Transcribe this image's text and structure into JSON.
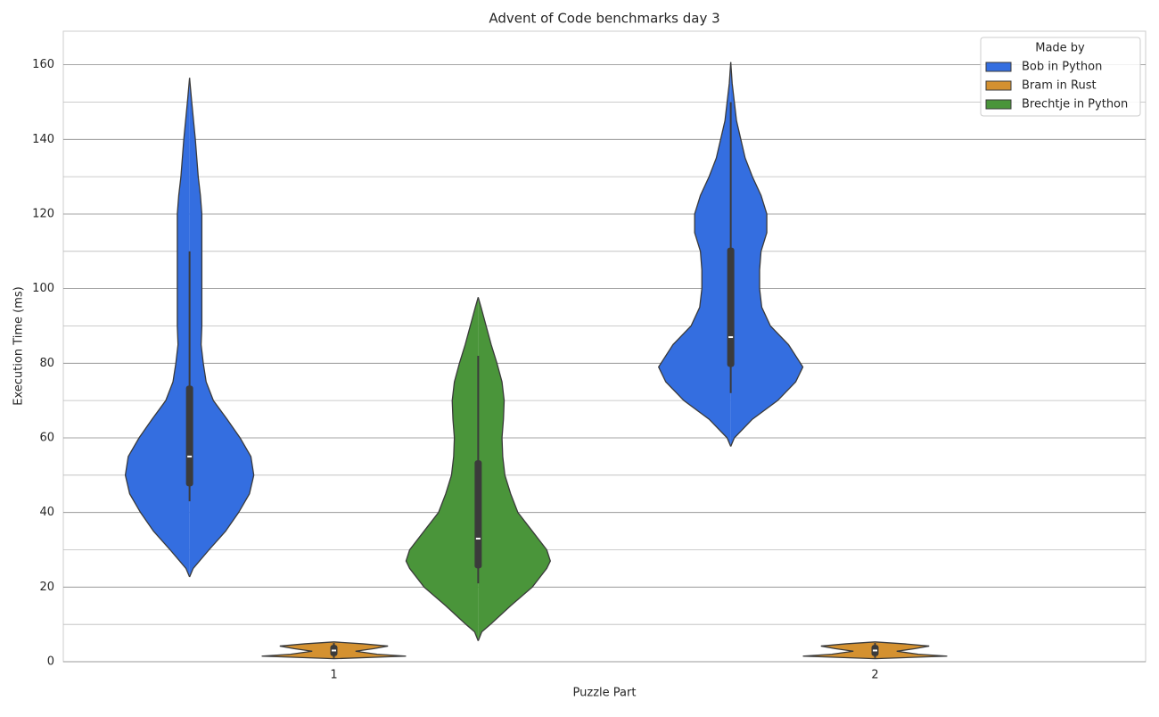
{
  "chart_data": {
    "type": "violin",
    "title": "Advent of Code benchmarks day 3",
    "xlabel": "Puzzle Part",
    "ylabel": "Execution Time (ms)",
    "categories": [
      "1",
      "2"
    ],
    "ylim": [
      0,
      169
    ],
    "yticks": [
      0,
      20,
      40,
      60,
      80,
      100,
      120,
      140,
      160
    ],
    "minor_yticks": [
      10,
      30,
      50,
      70,
      90,
      110,
      130,
      150
    ],
    "grid": true,
    "legend_title": "Made by",
    "legend_loc": "upper right",
    "series": [
      {
        "name": "Bob in Python",
        "color": "#346ee0",
        "values": [
          {
            "y": [
              22.7,
              25,
              30,
              35,
              40,
              45,
              50,
              55,
              60,
              65,
              70,
              75,
              80,
              85,
              90,
              100,
              110,
              120,
              125,
              130,
              140,
              150,
              156.5
            ],
            "density": [
              0,
              0.05,
              0.27,
              0.5,
              0.68,
              0.83,
              0.89,
              0.85,
              0.7,
              0.52,
              0.33,
              0.23,
              0.19,
              0.16,
              0.17,
              0.17,
              0.17,
              0.17,
              0.15,
              0.12,
              0.08,
              0.03,
              0
            ],
            "whisker_low": 43,
            "q1": 47,
            "median": 55,
            "q3": 74,
            "whisker_high": 110
          },
          {
            "y": [
              57.7,
              60,
              65,
              70,
              75,
              79,
              85,
              90,
              95,
              100,
              105,
              110,
              115,
              120,
              125,
              130,
              135,
              140,
              145,
              150,
              155,
              160.7
            ],
            "density": [
              0,
              0.05,
              0.3,
              0.65,
              0.9,
              1.0,
              0.8,
              0.55,
              0.43,
              0.4,
              0.4,
              0.42,
              0.5,
              0.5,
              0.42,
              0.3,
              0.2,
              0.14,
              0.08,
              0.05,
              0.02,
              0
            ],
            "whisker_low": 72,
            "q1": 79,
            "median": 87,
            "q3": 111,
            "whisker_high": 150
          }
        ]
      },
      {
        "name": "Bram in Rust",
        "color": "#d49130",
        "values": [
          {
            "y": [
              0.8,
              1.5,
              2,
              2.8,
              3.5,
              4.2,
              4.8,
              5.3
            ],
            "density": [
              0,
              1.0,
              0.6,
              0.3,
              0.55,
              0.75,
              0.4,
              0
            ],
            "whisker_low": 1,
            "q1": 1.5,
            "median": 3,
            "q3": 4.5,
            "whisker_high": 5
          },
          {
            "y": [
              0.8,
              1.5,
              2,
              2.8,
              3.5,
              4.2,
              4.8,
              5.3
            ],
            "density": [
              0,
              1.0,
              0.6,
              0.3,
              0.55,
              0.75,
              0.4,
              0
            ],
            "whisker_low": 1,
            "q1": 1.5,
            "median": 3,
            "q3": 4.5,
            "whisker_high": 5
          }
        ]
      },
      {
        "name": "Brechtje in Python",
        "color": "#4a953a",
        "values": [
          {
            "y": [
              5.6,
              8,
              10,
              15,
              20,
              25,
              27,
              30,
              35,
              40,
              45,
              50,
              55,
              60,
              65,
              70,
              75,
              80,
              85,
              90,
              95,
              97.7
            ],
            "density": [
              0,
              0.05,
              0.17,
              0.45,
              0.75,
              0.95,
              1.0,
              0.95,
              0.75,
              0.55,
              0.45,
              0.37,
              0.34,
              0.33,
              0.35,
              0.36,
              0.33,
              0.26,
              0.18,
              0.11,
              0.04,
              0
            ],
            "whisker_low": 21,
            "q1": 25,
            "median": 33,
            "q3": 54,
            "whisker_high": 82
          },
          null
        ]
      }
    ]
  }
}
